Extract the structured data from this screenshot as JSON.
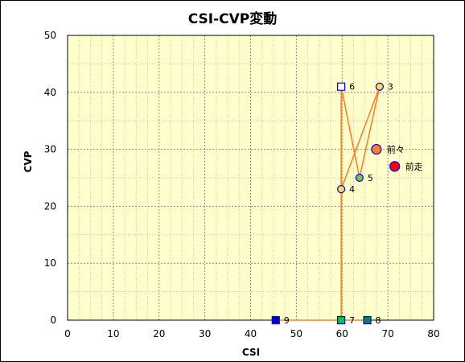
{
  "chart_data": {
    "type": "scatter",
    "title": "CSI-CVP変動",
    "xlabel": "CSI",
    "ylabel": "CVP",
    "xlim": [
      0,
      80
    ],
    "ylim": [
      0,
      50
    ],
    "x_ticks": [
      0,
      10,
      20,
      30,
      40,
      50,
      60,
      70,
      80
    ],
    "y_ticks": [
      0,
      10,
      20,
      30,
      40,
      50
    ],
    "grid": true,
    "colors": {
      "plot_bg": "#ffffcc",
      "grid": "#888888",
      "line": "#ff7f27",
      "frame": "#000000"
    },
    "path_order": [
      "9",
      "7",
      "8",
      "7",
      "6",
      "4",
      "3",
      "5",
      "6"
    ],
    "points": [
      {
        "label": "前走",
        "x": 71.5,
        "y": 27,
        "marker": "circle",
        "fill": "#ff0000",
        "stroke": "#0000ff",
        "size": "large"
      },
      {
        "label": "前々",
        "x": 67.5,
        "y": 30,
        "marker": "circle",
        "fill": "#ff7f27",
        "stroke": "#0000ff",
        "size": "large"
      },
      {
        "label": "3",
        "x": 68.2,
        "y": 41,
        "marker": "circle",
        "fill": "#ffdf4f",
        "stroke": "#0000ff",
        "size": "small"
      },
      {
        "label": "4",
        "x": 59.8,
        "y": 23,
        "marker": "circle",
        "fill": "#ffdf4f",
        "stroke": "#0000ff",
        "size": "small"
      },
      {
        "label": "5",
        "x": 63.8,
        "y": 25,
        "marker": "circle",
        "fill": "#7fbf3f",
        "stroke": "#0000ff",
        "size": "small"
      },
      {
        "label": "6",
        "x": 59.8,
        "y": 41,
        "marker": "square",
        "fill": "#ffffff",
        "stroke": "#0000ff",
        "size": "small"
      },
      {
        "label": "7",
        "x": 59.8,
        "y": 0,
        "marker": "square",
        "fill": "#00cc33",
        "stroke": "#0000ff",
        "size": "small"
      },
      {
        "label": "8",
        "x": 65.5,
        "y": 0,
        "marker": "square",
        "fill": "#008844",
        "stroke": "#0000ff",
        "size": "small"
      },
      {
        "label": "9",
        "x": 45.5,
        "y": 0,
        "marker": "square",
        "fill": "#0000aa",
        "stroke": "#0000ff",
        "size": "small"
      }
    ]
  }
}
